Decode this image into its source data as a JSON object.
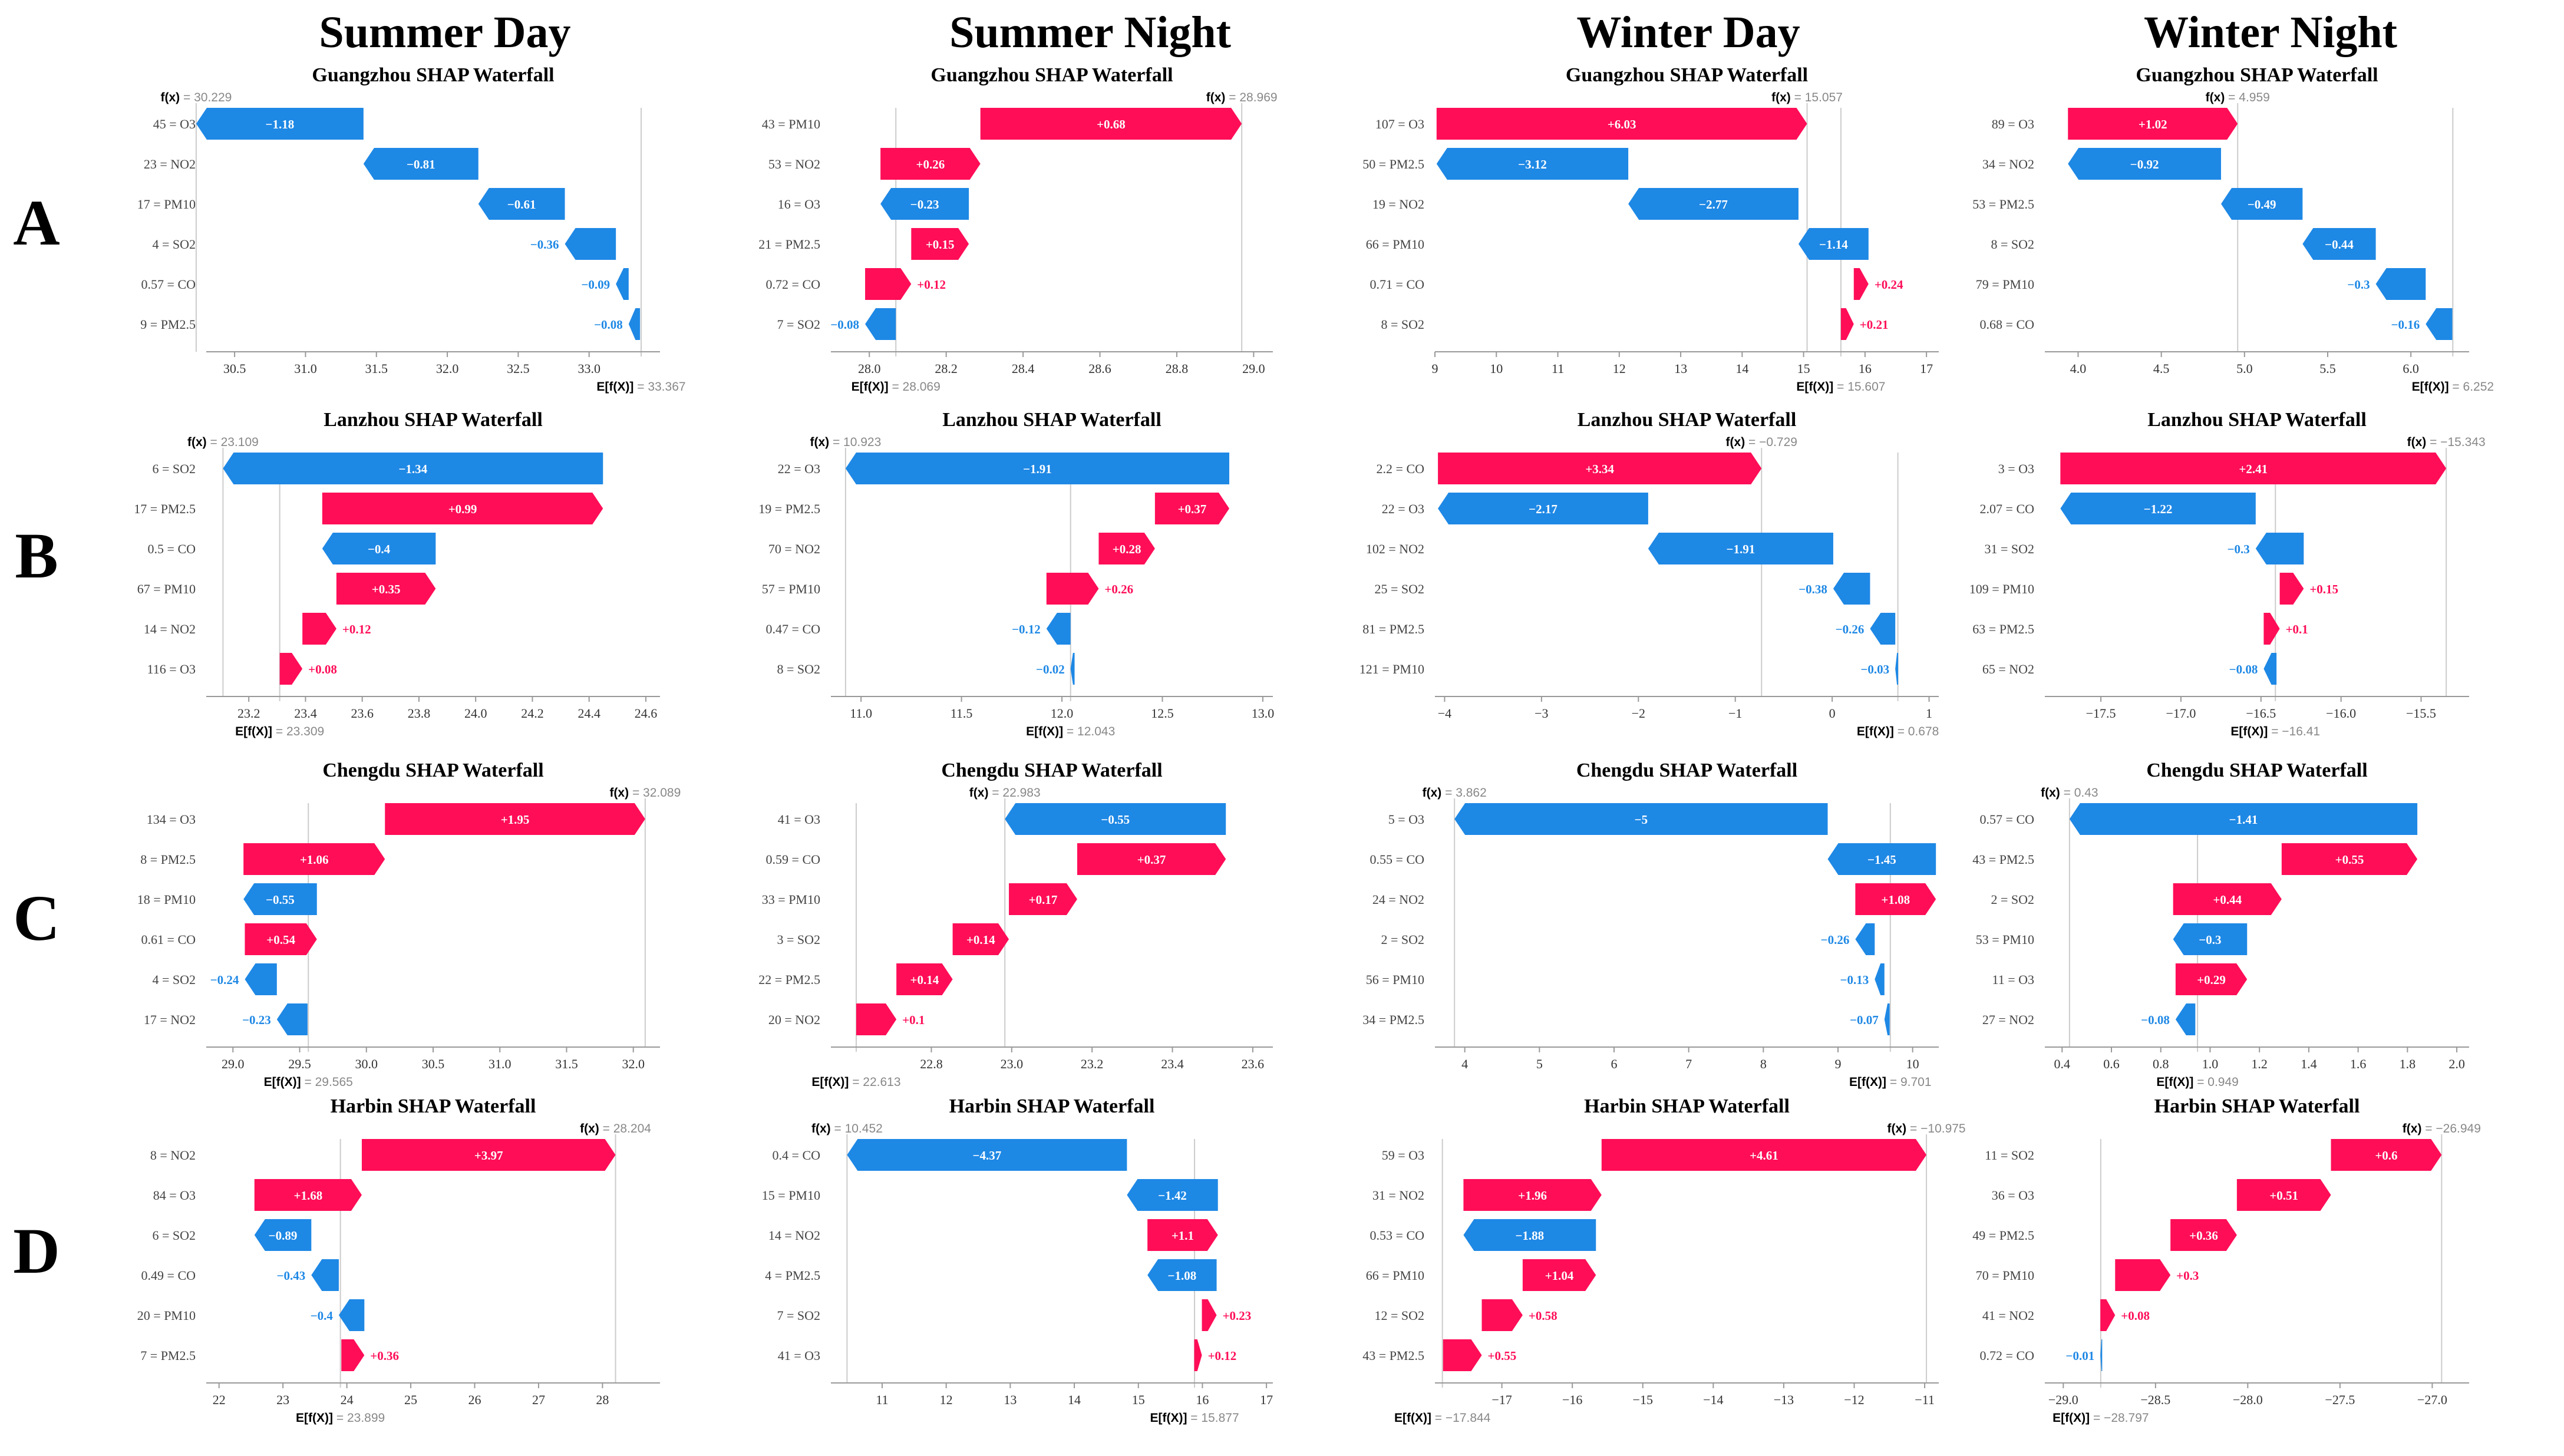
{
  "figure": {
    "columns": [
      "Summer Day",
      "Summer Night",
      "Winter Day",
      "Winter Night"
    ],
    "rows": [
      "A",
      "B",
      "C",
      "D"
    ],
    "colors": {
      "positive": "#ff0d57",
      "negative": "#1e88e5",
      "axis": "#999999",
      "fx": "#888888",
      "label": "#444444"
    }
  },
  "chart_data": [
    {
      "type": "waterfall",
      "row": 0,
      "col": 0,
      "title": "Guangzhou SHAP Waterfall",
      "fx": 30.229,
      "efx": 33.367,
      "features": [
        {
          "label": "45 = O3",
          "shap": -1.18,
          "text": "−1.18"
        },
        {
          "label": "23 = NO2",
          "shap": -0.81,
          "text": "−0.81"
        },
        {
          "label": "17 = PM10",
          "shap": -0.61,
          "text": "−0.61"
        },
        {
          "label": "4 = SO2",
          "shap": -0.36,
          "text": "−0.36"
        },
        {
          "label": "0.57 = CO",
          "shap": -0.09,
          "text": "−0.09"
        },
        {
          "label": "9 = PM2.5",
          "shap": -0.08,
          "text": "−0.08"
        }
      ],
      "xlim": [
        30.3,
        33.5
      ],
      "ticks": [
        30.5,
        31.0,
        31.5,
        32.0,
        32.5,
        33.0
      ],
      "tick_labels": [
        "30.5",
        "31.0",
        "31.5",
        "32.0",
        "32.5",
        "33.0"
      ]
    },
    {
      "type": "waterfall",
      "row": 0,
      "col": 1,
      "title": "Guangzhou SHAP Waterfall",
      "fx": 28.969,
      "efx": 28.069,
      "features": [
        {
          "label": "43 = PM10",
          "shap": 0.68,
          "text": "+0.68"
        },
        {
          "label": "53 = NO2",
          "shap": 0.26,
          "text": "+0.26"
        },
        {
          "label": "16 = O3",
          "shap": -0.23,
          "text": "−0.23"
        },
        {
          "label": "21 = PM2.5",
          "shap": 0.15,
          "text": "+0.15"
        },
        {
          "label": "0.72 = CO",
          "shap": 0.12,
          "text": "+0.12"
        },
        {
          "label": "7 = SO2",
          "shap": -0.08,
          "text": "−0.08"
        }
      ],
      "xlim": [
        27.9,
        29.05
      ],
      "ticks": [
        28.0,
        28.2,
        28.4,
        28.6,
        28.8,
        29.0
      ],
      "tick_labels": [
        "28.0",
        "28.2",
        "28.4",
        "28.6",
        "28.8",
        "29.0"
      ]
    },
    {
      "type": "waterfall",
      "row": 0,
      "col": 2,
      "title": "Guangzhou SHAP Waterfall",
      "fx": 15.057,
      "efx": 15.607,
      "features": [
        {
          "label": "107 = O3",
          "shap": 6.03,
          "text": "+6.03"
        },
        {
          "label": "50 = PM2.5",
          "shap": -3.12,
          "text": "−3.12"
        },
        {
          "label": "19 = NO2",
          "shap": -2.77,
          "text": "−2.77"
        },
        {
          "label": "66 = PM10",
          "shap": -1.14,
          "text": "−1.14"
        },
        {
          "label": "0.71 = CO",
          "shap": 0.24,
          "text": "+0.24"
        },
        {
          "label": "8 = SO2",
          "shap": 0.21,
          "text": "+0.21"
        }
      ],
      "xlim": [
        9,
        17.2
      ],
      "ticks": [
        9,
        10,
        11,
        12,
        13,
        14,
        15,
        16,
        17
      ],
      "tick_labels": [
        "9",
        "10",
        "11",
        "12",
        "13",
        "14",
        "15",
        "16",
        "17"
      ]
    },
    {
      "type": "waterfall",
      "row": 0,
      "col": 3,
      "title": "Guangzhou SHAP Waterfall",
      "fx": 4.959,
      "efx": 6.252,
      "features": [
        {
          "label": "89 = O3",
          "shap": 1.02,
          "text": "+1.02"
        },
        {
          "label": "34 = NO2",
          "shap": -0.92,
          "text": "−0.92"
        },
        {
          "label": "53 = PM2.5",
          "shap": -0.49,
          "text": "−0.49"
        },
        {
          "label": "8 = SO2",
          "shap": -0.44,
          "text": "−0.44"
        },
        {
          "label": "79 = PM10",
          "shap": -0.3,
          "text": "−0.3"
        },
        {
          "label": "0.68 = CO",
          "shap": -0.16,
          "text": "−0.16"
        }
      ],
      "xlim": [
        3.8,
        6.35
      ],
      "ticks": [
        4.0,
        4.5,
        5.0,
        5.5,
        6.0
      ],
      "tick_labels": [
        "4.0",
        "4.5",
        "5.0",
        "5.5",
        "6.0"
      ]
    },
    {
      "type": "waterfall",
      "row": 1,
      "col": 0,
      "title": "Lanzhou SHAP Waterfall",
      "fx": 23.109,
      "efx": 23.309,
      "features": [
        {
          "label": "6 = SO2",
          "shap": -1.34,
          "text": "−1.34"
        },
        {
          "label": "17 = PM2.5",
          "shap": 0.99,
          "text": "+0.99"
        },
        {
          "label": "0.5 = CO",
          "shap": -0.4,
          "text": "−0.4"
        },
        {
          "label": "67 = PM10",
          "shap": 0.35,
          "text": "+0.35"
        },
        {
          "label": "14 = NO2",
          "shap": 0.12,
          "text": "+0.12"
        },
        {
          "label": "116 = O3",
          "shap": 0.08,
          "text": "+0.08"
        }
      ],
      "xlim": [
        23.05,
        24.65
      ],
      "ticks": [
        23.2,
        23.4,
        23.6,
        23.8,
        24.0,
        24.2,
        24.4,
        24.6
      ],
      "tick_labels": [
        "23.2",
        "23.4",
        "23.6",
        "23.8",
        "24.0",
        "24.2",
        "24.4",
        "24.6"
      ]
    },
    {
      "type": "waterfall",
      "row": 1,
      "col": 1,
      "title": "Lanzhou SHAP Waterfall",
      "fx": 10.923,
      "efx": 12.043,
      "features": [
        {
          "label": "22 = O3",
          "shap": -1.91,
          "text": "−1.91"
        },
        {
          "label": "19 = PM2.5",
          "shap": 0.37,
          "text": "+0.37"
        },
        {
          "label": "70 = NO2",
          "shap": 0.28,
          "text": "+0.28"
        },
        {
          "label": "57 = PM10",
          "shap": 0.26,
          "text": "+0.26"
        },
        {
          "label": "0.47 = CO",
          "shap": -0.12,
          "text": "−0.12"
        },
        {
          "label": "8 = SO2",
          "shap": -0.02,
          "text": "−0.02"
        }
      ],
      "xlim": [
        10.85,
        13.05
      ],
      "ticks": [
        11.0,
        11.5,
        12.0,
        12.5,
        13.0
      ],
      "tick_labels": [
        "11.0",
        "11.5",
        "12.0",
        "12.5",
        "13.0"
      ]
    },
    {
      "type": "waterfall",
      "row": 1,
      "col": 2,
      "title": "Lanzhou SHAP Waterfall",
      "fx": -0.729,
      "efx": 0.678,
      "features": [
        {
          "label": "2.2 = CO",
          "shap": 3.34,
          "text": "+3.34"
        },
        {
          "label": "22 = O3",
          "shap": -2.17,
          "text": "−2.17"
        },
        {
          "label": "102 = NO2",
          "shap": -1.91,
          "text": "−1.91"
        },
        {
          "label": "25 = SO2",
          "shap": -0.38,
          "text": "−0.38"
        },
        {
          "label": "81 = PM2.5",
          "shap": -0.26,
          "text": "−0.26"
        },
        {
          "label": "121 = PM10",
          "shap": -0.03,
          "text": "−0.03"
        }
      ],
      "xlim": [
        -4.1,
        1.1
      ],
      "ticks": [
        -4,
        -3,
        -2,
        -1,
        0,
        1
      ],
      "tick_labels": [
        "−4",
        "−3",
        "−2",
        "−1",
        "0",
        "1"
      ]
    },
    {
      "type": "waterfall",
      "row": 1,
      "col": 3,
      "title": "Lanzhou SHAP Waterfall",
      "fx": -15.343,
      "efx": -16.41,
      "features": [
        {
          "label": "3 = O3",
          "shap": 2.41,
          "text": "+2.41"
        },
        {
          "label": "2.07 = CO",
          "shap": -1.22,
          "text": "−1.22"
        },
        {
          "label": "31 = SO2",
          "shap": -0.3,
          "text": "−0.3"
        },
        {
          "label": "109 = PM10",
          "shap": 0.15,
          "text": "+0.15"
        },
        {
          "label": "63 = PM2.5",
          "shap": 0.1,
          "text": "+0.1"
        },
        {
          "label": "65 = NO2",
          "shap": -0.08,
          "text": "−0.08"
        }
      ],
      "xlim": [
        -17.85,
        -15.2
      ],
      "ticks": [
        -17.5,
        -17.0,
        -16.5,
        -16.0,
        -15.5
      ],
      "tick_labels": [
        "−17.5",
        "−17.0",
        "−16.5",
        "−16.0",
        "−15.5"
      ]
    },
    {
      "type": "waterfall",
      "row": 2,
      "col": 0,
      "title": "Chengdu SHAP Waterfall",
      "fx": 32.089,
      "efx": 29.565,
      "features": [
        {
          "label": "134 = O3",
          "shap": 1.95,
          "text": "+1.95"
        },
        {
          "label": "8 = PM2.5",
          "shap": 1.06,
          "text": "+1.06"
        },
        {
          "label": "18 = PM10",
          "shap": -0.55,
          "text": "−0.55"
        },
        {
          "label": "0.61 = CO",
          "shap": 0.54,
          "text": "+0.54"
        },
        {
          "label": "4 = SO2",
          "shap": -0.24,
          "text": "−0.24"
        },
        {
          "label": "17 = NO2",
          "shap": -0.23,
          "text": "−0.23"
        }
      ],
      "xlim": [
        28.8,
        32.2
      ],
      "ticks": [
        29.0,
        29.5,
        30.0,
        30.5,
        31.0,
        31.5,
        32.0
      ],
      "tick_labels": [
        "29.0",
        "29.5",
        "30.0",
        "30.5",
        "31.0",
        "31.5",
        "32.0"
      ]
    },
    {
      "type": "waterfall",
      "row": 2,
      "col": 1,
      "title": "Chengdu SHAP Waterfall",
      "fx": 22.983,
      "efx": 22.613,
      "features": [
        {
          "label": "41 = O3",
          "shap": -0.55,
          "text": "−0.55"
        },
        {
          "label": "0.59 = CO",
          "shap": 0.37,
          "text": "+0.37"
        },
        {
          "label": "33 = PM10",
          "shap": 0.17,
          "text": "+0.17"
        },
        {
          "label": "3 = SO2",
          "shap": 0.14,
          "text": "+0.14"
        },
        {
          "label": "22 = PM2.5",
          "shap": 0.14,
          "text": "+0.14"
        },
        {
          "label": "20 = NO2",
          "shap": 0.1,
          "text": "+0.1"
        }
      ],
      "xlim": [
        22.55,
        23.65
      ],
      "ticks": [
        22.8,
        23.0,
        23.2,
        23.4,
        23.6
      ],
      "tick_labels": [
        "22.8",
        "23.0",
        "23.2",
        "23.4",
        "23.6"
      ]
    },
    {
      "type": "waterfall",
      "row": 2,
      "col": 2,
      "title": "Chengdu SHAP Waterfall",
      "fx": 3.862,
      "efx": 9.701,
      "features": [
        {
          "label": "5 = O3",
          "shap": -5,
          "text": "−5"
        },
        {
          "label": "0.55 = CO",
          "shap": -1.45,
          "text": "−1.45"
        },
        {
          "label": "24 = NO2",
          "shap": 1.08,
          "text": "+1.08"
        },
        {
          "label": "2 = SO2",
          "shap": -0.26,
          "text": "−0.26"
        },
        {
          "label": "56 = PM10",
          "shap": -0.13,
          "text": "−0.13"
        },
        {
          "label": "34 = PM2.5",
          "shap": -0.07,
          "text": "−0.07"
        }
      ],
      "xlim": [
        3.6,
        10.35
      ],
      "ticks": [
        4,
        5,
        6,
        7,
        8,
        9,
        10
      ],
      "tick_labels": [
        "4",
        "5",
        "6",
        "7",
        "8",
        "9",
        "10"
      ]
    },
    {
      "type": "waterfall",
      "row": 2,
      "col": 3,
      "title": "Chengdu SHAP Waterfall",
      "fx": 0.43,
      "efx": 0.949,
      "features": [
        {
          "label": "0.57 = CO",
          "shap": -1.41,
          "text": "−1.41"
        },
        {
          "label": "43 = PM2.5",
          "shap": 0.55,
          "text": "+0.55"
        },
        {
          "label": "2 = SO2",
          "shap": 0.44,
          "text": "+0.44"
        },
        {
          "label": "53 = PM10",
          "shap": -0.3,
          "text": "−0.3"
        },
        {
          "label": "11 = O3",
          "shap": 0.29,
          "text": "+0.29"
        },
        {
          "label": "27 = NO2",
          "shap": -0.08,
          "text": "−0.08"
        }
      ],
      "xlim": [
        0.33,
        2.05
      ],
      "ticks": [
        0.4,
        0.6,
        0.8,
        1.0,
        1.2,
        1.4,
        1.6,
        1.8,
        2.0
      ],
      "tick_labels": [
        "0.4",
        "0.6",
        "0.8",
        "1.0",
        "1.2",
        "1.4",
        "1.6",
        "1.8",
        "2.0"
      ]
    },
    {
      "type": "waterfall",
      "row": 3,
      "col": 0,
      "title": "Harbin SHAP Waterfall",
      "fx": 28.204,
      "efx": 23.899,
      "features": [
        {
          "label": "8 = NO2",
          "shap": 3.97,
          "text": "+3.97"
        },
        {
          "label": "84 = O3",
          "shap": 1.68,
          "text": "+1.68"
        },
        {
          "label": "6 = SO2",
          "shap": -0.89,
          "text": "−0.89"
        },
        {
          "label": "0.49 = CO",
          "shap": -0.43,
          "text": "−0.43"
        },
        {
          "label": "20 = PM10",
          "shap": -0.4,
          "text": "−0.4"
        },
        {
          "label": "7 = PM2.5",
          "shap": 0.36,
          "text": "+0.36"
        }
      ],
      "xlim": [
        21.8,
        28.9
      ],
      "ticks": [
        22,
        23,
        24,
        25,
        26,
        27,
        28
      ],
      "tick_labels": [
        "22",
        "23",
        "24",
        "25",
        "26",
        "27",
        "28"
      ]
    },
    {
      "type": "waterfall",
      "row": 3,
      "col": 1,
      "title": "Harbin SHAP Waterfall",
      "fx": 10.452,
      "efx": 15.877,
      "features": [
        {
          "label": "0.4 = CO",
          "shap": -4.37,
          "text": "−4.37"
        },
        {
          "label": "15 = PM10",
          "shap": -1.42,
          "text": "−1.42"
        },
        {
          "label": "14 = NO2",
          "shap": 1.1,
          "text": "+1.1"
        },
        {
          "label": "4 = PM2.5",
          "shap": -1.08,
          "text": "−1.08"
        },
        {
          "label": "7 = SO2",
          "shap": 0.23,
          "text": "+0.23"
        },
        {
          "label": "41 = O3",
          "shap": 0.12,
          "text": "+0.12"
        }
      ],
      "xlim": [
        10.2,
        17.1
      ],
      "ticks": [
        11,
        12,
        13,
        14,
        15,
        16,
        17
      ],
      "tick_labels": [
        "11",
        "12",
        "13",
        "14",
        "15",
        "16",
        "17"
      ]
    },
    {
      "type": "waterfall",
      "row": 3,
      "col": 2,
      "title": "Harbin SHAP Waterfall",
      "fx": -10.975,
      "efx": -17.844,
      "features": [
        {
          "label": "59 = O3",
          "shap": 4.61,
          "text": "+4.61"
        },
        {
          "label": "31 = NO2",
          "shap": 1.96,
          "text": "+1.96"
        },
        {
          "label": "0.53 = CO",
          "shap": -1.88,
          "text": "−1.88"
        },
        {
          "label": "66 = PM10",
          "shap": 1.04,
          "text": "+1.04"
        },
        {
          "label": "12 = SO2",
          "shap": 0.58,
          "text": "+0.58"
        },
        {
          "label": "43 = PM2.5",
          "shap": 0.55,
          "text": "+0.55"
        }
      ],
      "xlim": [
        -17.95,
        -10.8
      ],
      "ticks": [
        -17,
        -16,
        -15,
        -14,
        -13,
        -12,
        -11
      ],
      "tick_labels": [
        "−17",
        "−16",
        "−15",
        "−14",
        "−13",
        "−12",
        "−11"
      ]
    },
    {
      "type": "waterfall",
      "row": 3,
      "col": 3,
      "title": "Harbin SHAP Waterfall",
      "fx": -26.949,
      "efx": -28.797,
      "features": [
        {
          "label": "11 = SO2",
          "shap": 0.6,
          "text": "+0.6"
        },
        {
          "label": "36 = O3",
          "shap": 0.51,
          "text": "+0.51"
        },
        {
          "label": "49 = PM2.5",
          "shap": 0.36,
          "text": "+0.36"
        },
        {
          "label": "70 = PM10",
          "shap": 0.3,
          "text": "+0.3"
        },
        {
          "label": "41 = NO2",
          "shap": 0.08,
          "text": "+0.08"
        },
        {
          "label": "0.72 = CO",
          "shap": -0.01,
          "text": "−0.01"
        }
      ],
      "xlim": [
        -29.1,
        -26.8
      ],
      "ticks": [
        -29.0,
        -28.5,
        -28.0,
        -27.5,
        -27.0
      ],
      "tick_labels": [
        "−29.0",
        "−28.5",
        "−28.0",
        "−27.5",
        "−27.0"
      ]
    }
  ]
}
